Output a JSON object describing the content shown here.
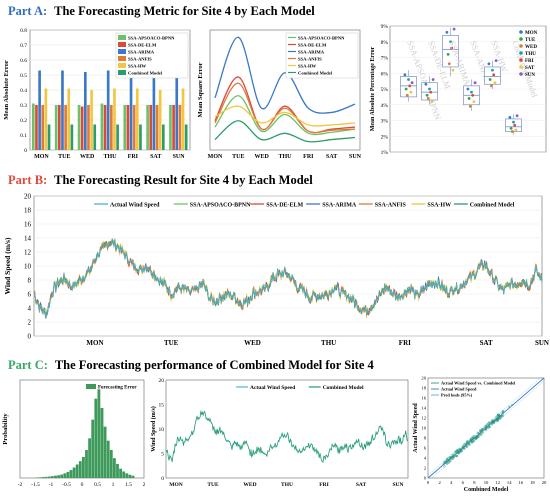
{
  "partA": {
    "label": "Part A:",
    "title": "The Forecasting Metric for Site 4 by Each Model",
    "label_color": "#2f6fbf"
  },
  "partB": {
    "label": "Part B:",
    "title": "The Forecasting Result for Site 4 by Each Model",
    "label_color": "#e04a3a"
  },
  "partC": {
    "label": "Part C:",
    "title": "The Forecasting performance of Combined Model for Site 4",
    "label_color": "#3aa66a"
  },
  "model_colors": {
    "SSA-APSOACO-BPNN": "#6cc26a",
    "SSA-DE-ELM": "#d94b38",
    "SSA-ARIMA": "#3a78c9",
    "SSA-ANFIS": "#e07a3a",
    "SSA-HW": "#f2c640",
    "Combined Model": "#2a9d6a",
    "Actual Wind Speed": "#4fb3d9"
  },
  "chart_data": [
    {
      "id": "mae",
      "type": "bar",
      "ylabel": "Mean Absolute Error",
      "ylim": [
        0,
        0.8
      ],
      "yticks": [
        "0",
        "0.1",
        "0.2",
        "0.3",
        "0.4",
        "0.5",
        "0.6",
        "0.7",
        "0.8"
      ],
      "categories": [
        "MON",
        "TUE",
        "WED",
        "THU",
        "FRI",
        "SAT",
        "SUN"
      ],
      "legend_position": "top-right",
      "series": [
        {
          "name": "SSA-APSOACO-BPNN",
          "values": [
            0.31,
            0.3,
            0.3,
            0.31,
            0.3,
            0.3,
            0.3
          ]
        },
        {
          "name": "SSA-DE-ELM",
          "values": [
            0.3,
            0.3,
            0.29,
            0.3,
            0.3,
            0.3,
            0.3
          ]
        },
        {
          "name": "SSA-ARIMA",
          "values": [
            0.53,
            0.53,
            0.52,
            0.53,
            0.53,
            0.53,
            0.52
          ]
        },
        {
          "name": "SSA-ANFIS",
          "values": [
            0.3,
            0.3,
            0.3,
            0.3,
            0.3,
            0.3,
            0.3
          ]
        },
        {
          "name": "SSA-HW",
          "values": [
            0.41,
            0.41,
            0.4,
            0.41,
            0.41,
            0.4,
            0.41
          ]
        },
        {
          "name": "Combined Model",
          "values": [
            0.17,
            0.17,
            0.17,
            0.17,
            0.17,
            0.17,
            0.17
          ]
        }
      ]
    },
    {
      "id": "mse",
      "type": "line",
      "ylabel": "Mean Square Error",
      "categories": [
        "MON",
        "TUE",
        "WED",
        "THU",
        "FRI",
        "SAT",
        "SUN"
      ],
      "legend_position": "top-right",
      "series": [
        {
          "name": "SSA-APSOACO-BPNN",
          "values": [
            0.22,
            0.52,
            0.18,
            0.34,
            0.16,
            0.17,
            0.2
          ]
        },
        {
          "name": "SSA-DE-ELM",
          "values": [
            0.28,
            0.7,
            0.2,
            0.42,
            0.18,
            0.2,
            0.22
          ]
        },
        {
          "name": "SSA-ARIMA",
          "values": [
            0.5,
            1.08,
            0.4,
            0.74,
            0.4,
            0.36,
            0.44
          ]
        },
        {
          "name": "SSA-ANFIS",
          "values": [
            0.26,
            0.64,
            0.2,
            0.4,
            0.18,
            0.19,
            0.2
          ]
        },
        {
          "name": "SSA-HW",
          "values": [
            0.32,
            0.42,
            0.26,
            0.36,
            0.24,
            0.24,
            0.26
          ]
        },
        {
          "name": "Combined Model",
          "values": [
            0.1,
            0.28,
            0.1,
            0.16,
            0.08,
            0.1,
            0.12
          ]
        }
      ]
    },
    {
      "id": "mape",
      "type": "box",
      "ylabel": "Mean Absolute Percentage Error",
      "ylim": [
        1,
        9
      ],
      "yticks": [
        "1%",
        "2%",
        "3%",
        "4%",
        "5%",
        "6%",
        "7%",
        "8%",
        "9%"
      ],
      "categories": [
        "SSA-APSOACO-BPNN",
        "SSA-DE-ELM",
        "SSA-ARIMA",
        "SSA-ANFIS",
        "SSA-HW",
        "Combined Model"
      ],
      "legend": [
        "MON",
        "TUE",
        "WED",
        "THU",
        "FRI",
        "SAT",
        "SUN"
      ],
      "legend_colors": [
        "#3a78c9",
        "#2aa84a",
        "#e07a3a",
        "#1aa0b8",
        "#d94b38",
        "#f2c640",
        "#8a5cc2"
      ],
      "legend_position": "top-right",
      "boxes": [
        {
          "q1": 4.5,
          "median": 5.2,
          "q3": 5.8,
          "min": 4.2,
          "max": 6.2,
          "points": [
            5.9,
            5.0,
            4.6,
            5.6,
            5.2,
            4.8,
            5.4
          ]
        },
        {
          "q1": 4.3,
          "median": 4.8,
          "q3": 5.4,
          "min": 4.0,
          "max": 5.8,
          "points": [
            5.3,
            4.6,
            4.4,
            5.0,
            4.8,
            4.2,
            5.6
          ]
        },
        {
          "q1": 6.4,
          "median": 7.5,
          "q3": 8.4,
          "min": 5.8,
          "max": 8.9,
          "points": [
            8.6,
            7.2,
            6.6,
            8.0,
            7.6,
            6.2,
            8.8
          ]
        },
        {
          "q1": 4.0,
          "median": 4.6,
          "q3": 5.2,
          "min": 3.6,
          "max": 5.6,
          "points": [
            5.0,
            4.4,
            3.9,
            4.8,
            4.6,
            4.2,
            5.4
          ]
        },
        {
          "q1": 5.3,
          "median": 5.8,
          "q3": 6.4,
          "min": 5.0,
          "max": 6.8,
          "points": [
            6.6,
            5.6,
            5.2,
            6.2,
            5.9,
            5.4,
            6.8
          ]
        },
        {
          "q1": 2.3,
          "median": 2.6,
          "q3": 3.1,
          "min": 2.1,
          "max": 3.4,
          "points": [
            3.2,
            2.5,
            2.3,
            2.9,
            2.7,
            2.4,
            3.3
          ]
        }
      ]
    },
    {
      "id": "forecast_all",
      "type": "line",
      "ylabel": "Wind Speed (m/s)",
      "ylim": [
        0,
        20
      ],
      "yticks": [
        "0",
        "2",
        "4",
        "6",
        "8",
        "10",
        "12",
        "14",
        "16",
        "18",
        "20"
      ],
      "x_tick_labels": [
        "MON",
        "TUE",
        "WED",
        "THU",
        "FRI",
        "SAT",
        "SUN"
      ],
      "legend_position": "top-center",
      "series_names": [
        "Actual Wind Speed",
        "SSA-APSOACO-BPNN",
        "SSA-DE-ELM",
        "SSA-ARIMA",
        "SSA-ANFIS",
        "SSA-HW",
        "Combined Model"
      ],
      "actual": [
        6.2,
        4.0,
        3.2,
        6.5,
        7.8,
        8.2,
        7.0,
        7.8,
        8.5,
        9.5,
        11.5,
        12.5,
        13.5,
        13.0,
        12.2,
        11.0,
        10.0,
        9.5,
        10.0,
        9.0,
        8.0,
        7.2,
        6.0,
        7.0,
        6.6,
        6.2,
        6.8,
        7.4,
        5.4,
        5.0,
        5.6,
        6.0,
        5.6,
        4.6,
        5.0,
        6.2,
        6.4,
        6.8,
        8.2,
        8.8,
        9.0,
        8.4,
        7.0,
        6.4,
        5.5,
        5.8,
        5.8,
        6.1,
        7.0,
        6.2,
        5.8,
        5.0,
        4.0,
        3.6,
        4.5,
        5.5,
        7.0,
        6.2,
        5.6,
        6.0,
        7.0,
        5.8,
        6.4,
        7.4,
        7.7,
        7.2,
        6.2,
        6.8,
        7.0,
        8.0,
        8.6,
        9.8,
        10.2,
        8.7,
        7.2,
        6.5,
        7.5,
        7.4,
        8.0,
        7.2,
        9.4,
        8.0
      ]
    },
    {
      "id": "error_hist",
      "type": "bar",
      "ylabel": "Probability",
      "xlim": [
        -2,
        2
      ],
      "x_tick_labels": [
        "-2",
        "-1.5",
        "-1",
        "-0.5",
        "0",
        "0.5",
        "1",
        "1.5",
        "2"
      ],
      "legend": [
        "Forecasting Error"
      ],
      "legend_position": "top-right",
      "bin_width": 0.1,
      "bin_start": -1.5,
      "values": [
        0.002,
        0.003,
        0.004,
        0.005,
        0.006,
        0.008,
        0.01,
        0.012,
        0.015,
        0.02,
        0.026,
        0.034,
        0.045,
        0.058,
        0.072,
        0.09,
        0.12,
        0.17,
        0.25,
        0.34,
        0.38,
        0.3,
        0.22,
        0.16,
        0.12,
        0.085,
        0.06,
        0.04,
        0.028,
        0.02,
        0.014,
        0.01
      ]
    },
    {
      "id": "combined_forecast",
      "type": "line",
      "ylabel": "Wind Speed (m/s)",
      "ylim": [
        0,
        20
      ],
      "yticks": [
        "0",
        "5",
        "10",
        "15",
        "20"
      ],
      "x_tick_labels": [
        "MON",
        "TUE",
        "WED",
        "THU",
        "FRI",
        "SAT",
        "SUN"
      ],
      "legend_position": "top-center",
      "series_names": [
        "Actual Wind Speed",
        "Combined Model"
      ]
    },
    {
      "id": "scatter",
      "type": "scatter",
      "xlabel": "Combined Model",
      "ylabel": "Actual Wind Speed",
      "xlim": [
        0,
        20
      ],
      "ylim": [
        0,
        20
      ],
      "ticks": [
        "0",
        "2",
        "4",
        "6",
        "8",
        "10",
        "12",
        "14",
        "16",
        "18",
        "20"
      ],
      "legend": [
        "Actual Wind Speed vs. Combined Model",
        "Actual Wind Speed",
        "Pred bnds (95%)"
      ],
      "legend_position": "top-left"
    }
  ]
}
